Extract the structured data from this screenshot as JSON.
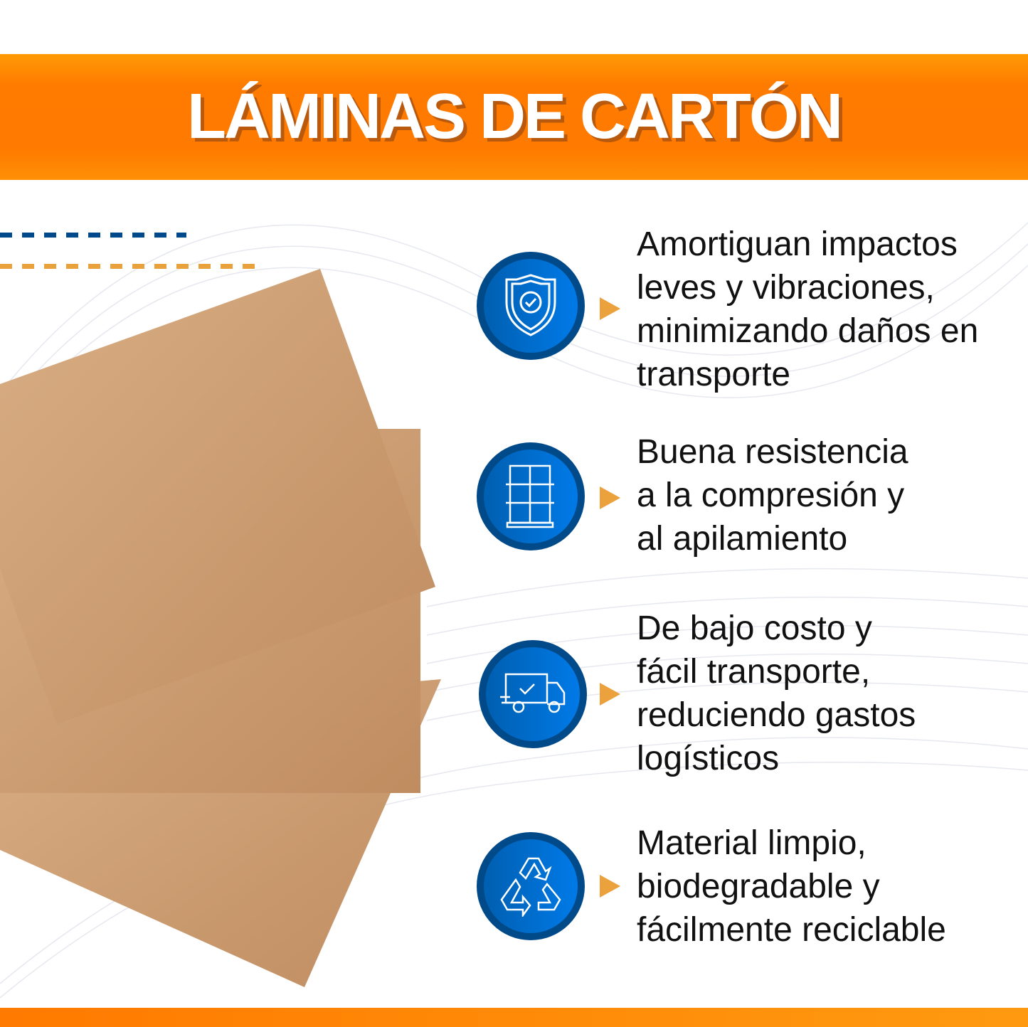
{
  "header": {
    "title": "LÁMINAS DE CARTÓN"
  },
  "colors": {
    "orange": "#ff7a00",
    "blue": "#004a8a",
    "arrow": "#eba13c",
    "cardboard": "#c8976a"
  },
  "features": [
    {
      "icon": "shield-check-icon",
      "text": "Amortiguan impactos leves y vibraciones, minimizando daños en transporte"
    },
    {
      "icon": "stacked-boxes-pallet-icon",
      "text": "Buena resistencia a la compresión y al apilamiento"
    },
    {
      "icon": "delivery-truck-check-icon",
      "text": "De bajo costo y fácil transporte, reduciendo gastos logísticos"
    },
    {
      "icon": "recycle-icon",
      "text": "Material limpio, biodegradable y fácilmente reciclable"
    }
  ]
}
